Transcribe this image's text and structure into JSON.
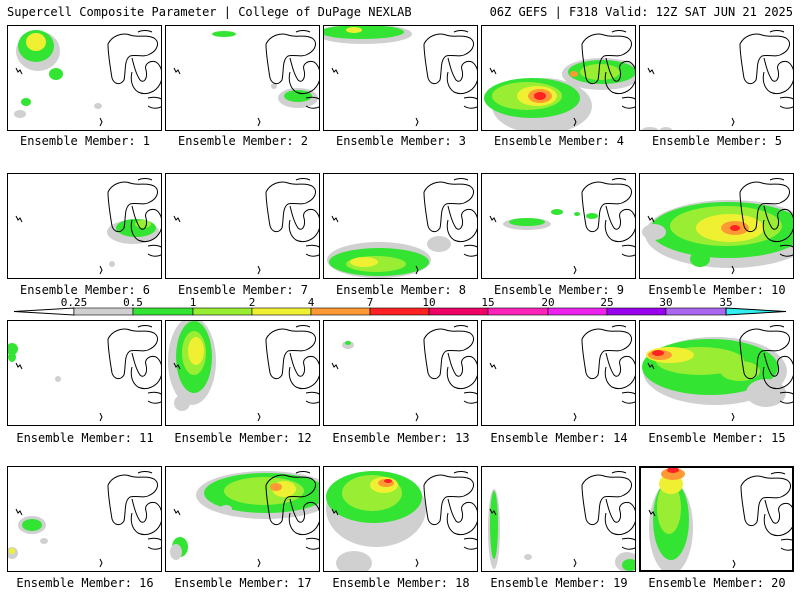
{
  "header": {
    "title_left": "Supercell Composite Parameter | College of DuPage NEXLAB",
    "title_right": "06Z GEFS | F318 Valid: 12Z SAT JUN 21 2025"
  },
  "colorbar": {
    "labels": [
      "0.25",
      "0.5",
      "1",
      "2",
      "4",
      "7",
      "10",
      "15",
      "20",
      "25",
      "30",
      "35"
    ],
    "colors": [
      "#d0d0d0",
      "#33e433",
      "#99ee33",
      "#f0f033",
      "#ff9933",
      "#ff2222",
      "#ee0066",
      "#ff22bb",
      "#ee22ee",
      "#9900ee",
      "#aa66ee",
      "#33eeee"
    ]
  },
  "members": [
    {
      "caption": "Ensemble Member: 1"
    },
    {
      "caption": "Ensemble Member: 2"
    },
    {
      "caption": "Ensemble Member: 3"
    },
    {
      "caption": "Ensemble Member: 4"
    },
    {
      "caption": "Ensemble Member: 5"
    },
    {
      "caption": "Ensemble Member: 6"
    },
    {
      "caption": "Ensemble Member: 7"
    },
    {
      "caption": "Ensemble Member: 8"
    },
    {
      "caption": "Ensemble Member: 9"
    },
    {
      "caption": "Ensemble Member: 10"
    },
    {
      "caption": "Ensemble Member: 11"
    },
    {
      "caption": "Ensemble Member: 12"
    },
    {
      "caption": "Ensemble Member: 13"
    },
    {
      "caption": "Ensemble Member: 14"
    },
    {
      "caption": "Ensemble Member: 15"
    },
    {
      "caption": "Ensemble Member: 16"
    },
    {
      "caption": "Ensemble Member: 17"
    },
    {
      "caption": "Ensemble Member: 18"
    },
    {
      "caption": "Ensemble Member: 19"
    },
    {
      "caption": "Ensemble Member: 20"
    }
  ]
}
